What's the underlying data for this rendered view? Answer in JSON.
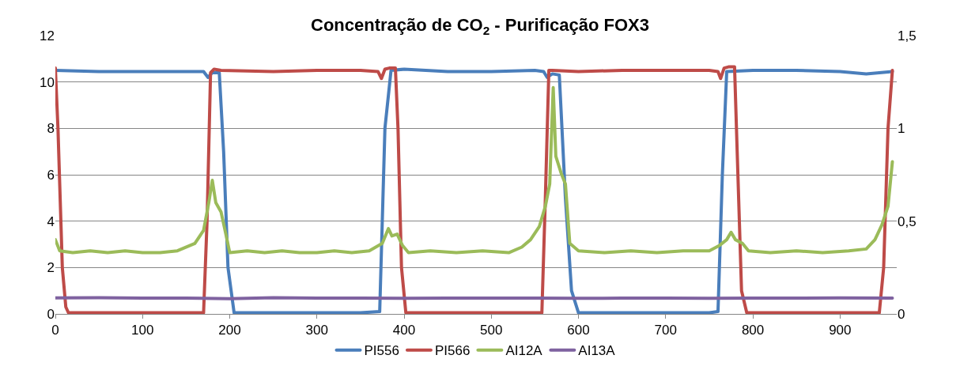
{
  "chart_data": {
    "type": "line",
    "title": "Concentração de CO$_{2}$ - Purificação FOX3",
    "xlim": [
      0,
      965
    ],
    "xticks": [
      0,
      100,
      200,
      300,
      400,
      500,
      600,
      700,
      800,
      900
    ],
    "ylim": [
      0,
      12
    ],
    "yticks": [
      0,
      2,
      4,
      6,
      8,
      10,
      12
    ],
    "y2lim": [
      0,
      1.5
    ],
    "y2ticks": [
      {
        "value": 0,
        "label": "0"
      },
      {
        "value": 0.5,
        "label": "0,5"
      },
      {
        "value": 1,
        "label": "1"
      },
      {
        "value": 1.5,
        "label": "1,5"
      }
    ],
    "grid": "y",
    "legend": "bottom",
    "marker": "none",
    "line_style": "solid",
    "series": [
      {
        "name": "PI556",
        "color": "#4a7ebb",
        "x": [
          0,
          50,
          100,
          150,
          170,
          175,
          180,
          188,
          193,
          198,
          205,
          250,
          300,
          350,
          372,
          378,
          385,
          400,
          450,
          500,
          550,
          560,
          564,
          570,
          578,
          585,
          592,
          600,
          650,
          700,
          750,
          760,
          765,
          770,
          800,
          850,
          900,
          930,
          960
        ],
        "values": [
          10.5,
          10.45,
          10.45,
          10.45,
          10.45,
          10.2,
          10.4,
          10.4,
          7,
          2,
          0.05,
          0.05,
          0.05,
          0.05,
          0.1,
          8,
          10.5,
          10.55,
          10.45,
          10.45,
          10.5,
          10.45,
          10.2,
          10.35,
          10.3,
          5,
          1,
          0.05,
          0.05,
          0.05,
          0.05,
          0.1,
          6,
          10.45,
          10.5,
          10.5,
          10.45,
          10.35,
          10.45
        ]
      },
      {
        "name": "PI566",
        "color": "#be4b48",
        "x": [
          0,
          3,
          8,
          12,
          15,
          50,
          100,
          150,
          170,
          174,
          178,
          182,
          190,
          250,
          300,
          350,
          370,
          374,
          378,
          383,
          390,
          393,
          397,
          402,
          450,
          500,
          558,
          562,
          566,
          570,
          600,
          650,
          700,
          750,
          760,
          763,
          767,
          772,
          779,
          782,
          787,
          793,
          850,
          900,
          945,
          950,
          955,
          960
        ],
        "values": [
          10.6,
          8,
          2,
          0.3,
          0.05,
          0.05,
          0.05,
          0.05,
          0.05,
          4,
          10.4,
          10.55,
          10.5,
          10.45,
          10.5,
          10.5,
          10.45,
          10.15,
          10.55,
          10.6,
          10.6,
          8,
          2,
          0.05,
          0.05,
          0.05,
          0.05,
          5,
          10.5,
          10.5,
          10.45,
          10.5,
          10.5,
          10.5,
          10.45,
          10.15,
          10.6,
          10.65,
          10.65,
          7,
          1,
          0.05,
          0.05,
          0.05,
          0.05,
          2,
          8,
          10.5
        ]
      },
      {
        "name": "AI12A",
        "color": "#9bbb59",
        "axis": "y2",
        "x": [
          0,
          5,
          20,
          40,
          60,
          80,
          100,
          120,
          140,
          160,
          170,
          176,
          180,
          184,
          190,
          196,
          200,
          220,
          240,
          260,
          280,
          300,
          320,
          340,
          360,
          375,
          382,
          386,
          392,
          398,
          405,
          430,
          460,
          490,
          520,
          535,
          545,
          555,
          562,
          567,
          571,
          574,
          580,
          585,
          590,
          600,
          630,
          660,
          690,
          720,
          750,
          762,
          770,
          775,
          780,
          788,
          795,
          820,
          850,
          880,
          910,
          930,
          940,
          948,
          955,
          960
        ],
        "values": [
          0.4,
          0.34,
          0.33,
          0.34,
          0.33,
          0.34,
          0.33,
          0.33,
          0.34,
          0.38,
          0.45,
          0.6,
          0.72,
          0.6,
          0.55,
          0.42,
          0.33,
          0.34,
          0.33,
          0.34,
          0.33,
          0.33,
          0.34,
          0.33,
          0.34,
          0.38,
          0.46,
          0.42,
          0.43,
          0.37,
          0.33,
          0.34,
          0.33,
          0.34,
          0.33,
          0.36,
          0.4,
          0.47,
          0.58,
          0.7,
          1.22,
          0.85,
          0.76,
          0.7,
          0.38,
          0.34,
          0.33,
          0.34,
          0.33,
          0.34,
          0.34,
          0.37,
          0.4,
          0.44,
          0.4,
          0.38,
          0.34,
          0.33,
          0.34,
          0.33,
          0.34,
          0.35,
          0.4,
          0.48,
          0.58,
          0.82
        ]
      },
      {
        "name": "AI13A",
        "color": "#7f62a0",
        "axis": "y2",
        "x": [
          0,
          50,
          100,
          150,
          200,
          250,
          300,
          350,
          400,
          450,
          500,
          550,
          600,
          650,
          700,
          750,
          800,
          850,
          900,
          960
        ],
        "values": [
          0.086,
          0.087,
          0.085,
          0.085,
          0.082,
          0.087,
          0.085,
          0.085,
          0.084,
          0.085,
          0.085,
          0.085,
          0.084,
          0.085,
          0.085,
          0.084,
          0.085,
          0.085,
          0.086,
          0.085
        ]
      }
    ]
  }
}
